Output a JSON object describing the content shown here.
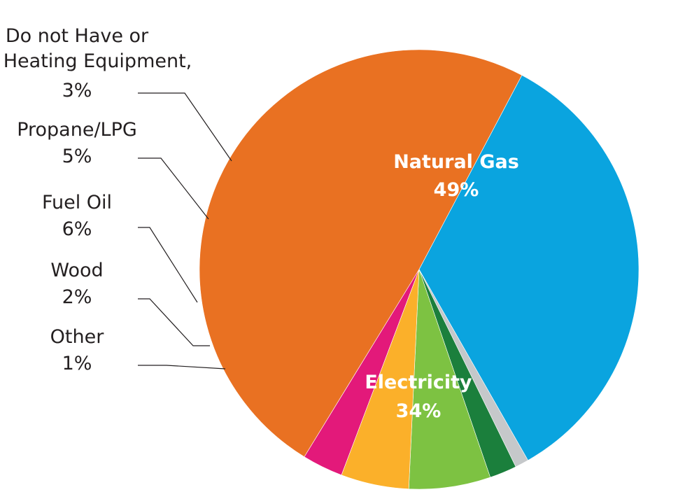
{
  "chart_data": {
    "type": "pie",
    "title": "",
    "start_at": "Natural Gas slice begins at the upper-left and runs clockwise",
    "slices": [
      {
        "label": "Natural Gas",
        "value": 49,
        "value_label": "49%",
        "color": "#e97122",
        "label_position": "inside"
      },
      {
        "label": "Electricity",
        "value": 34,
        "value_label": "34%",
        "color": "#0aa4df",
        "label_position": "inside"
      },
      {
        "label": "Other",
        "value": 1,
        "value_label": "1%",
        "color": "#c5c8ca",
        "label_position": "outside-left"
      },
      {
        "label": "Wood",
        "value": 2,
        "value_label": "2%",
        "color": "#1b7f3c",
        "label_position": "outside-left"
      },
      {
        "label": "Fuel Oil",
        "value": 6,
        "value_label": "6%",
        "color": "#7dc242",
        "label_position": "outside-left"
      },
      {
        "label": "Propane/LPG",
        "value": 5,
        "value_label": "5%",
        "color": "#fbb02a",
        "label_position": "outside-left"
      },
      {
        "label": "Do not Have or Use Heating Equipment,",
        "label_lines": [
          "Do not Have or",
          "Use Heating Equipment,"
        ],
        "value": 3,
        "value_label": "3%",
        "color": "#e3197a",
        "label_position": "outside-left"
      }
    ]
  }
}
